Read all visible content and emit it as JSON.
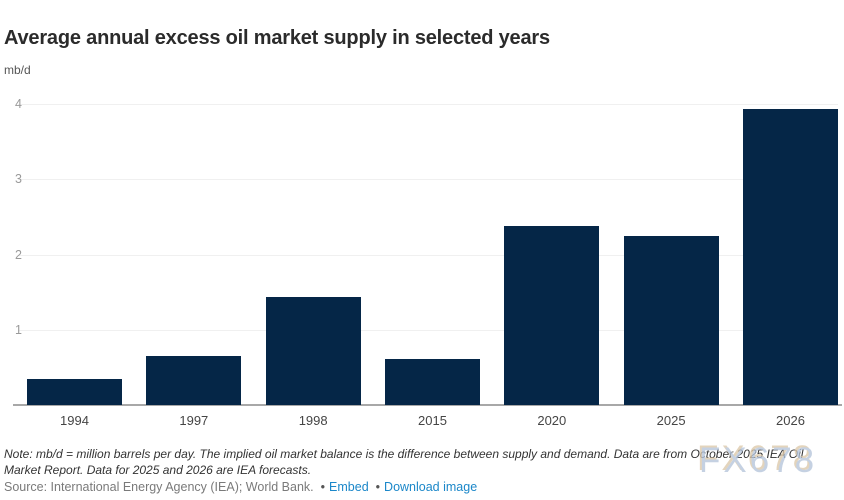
{
  "header": {
    "title": "Average annual excess oil market supply in selected years",
    "units": "mb/d"
  },
  "chart_data": {
    "type": "bar",
    "title": "Average annual excess oil market supply in selected years",
    "ylabel": "mb/d",
    "xlabel": "",
    "categories": [
      "1994",
      "1997",
      "1998",
      "2015",
      "2020",
      "2025",
      "2026"
    ],
    "values": [
      0.35,
      0.65,
      1.43,
      0.61,
      2.38,
      2.25,
      3.94
    ],
    "ylim": [
      0,
      4
    ],
    "yticks": [
      1,
      2,
      3,
      4
    ],
    "grid": true,
    "legend_position": "none",
    "bar_color": "#052647",
    "gridline_color": "#f0f0f0",
    "axis_color": "#a8a8a8"
  },
  "footer": {
    "note": "Note: mb/d = million barrels per day. The implied oil market balance is the difference between supply and demand. Data are from October 2025 IEA Oil Market Report. Data for 2025 and 2026 are IEA forecasts.",
    "source_text": "Source: International Energy Agency (IEA); World Bank.",
    "bullet": "•",
    "links": [
      {
        "label": "Embed"
      },
      {
        "label": "Download image"
      }
    ]
  },
  "watermark": {
    "text": "FX678"
  },
  "colors": {
    "bar": "#052647",
    "link": "#1b87c9",
    "title_text": "#2b2b2b",
    "note_text": "#333333",
    "source_text": "#7a7a7a",
    "watermark_blue": "#b5c5db",
    "watermark_tan": "#dcc8aa"
  }
}
